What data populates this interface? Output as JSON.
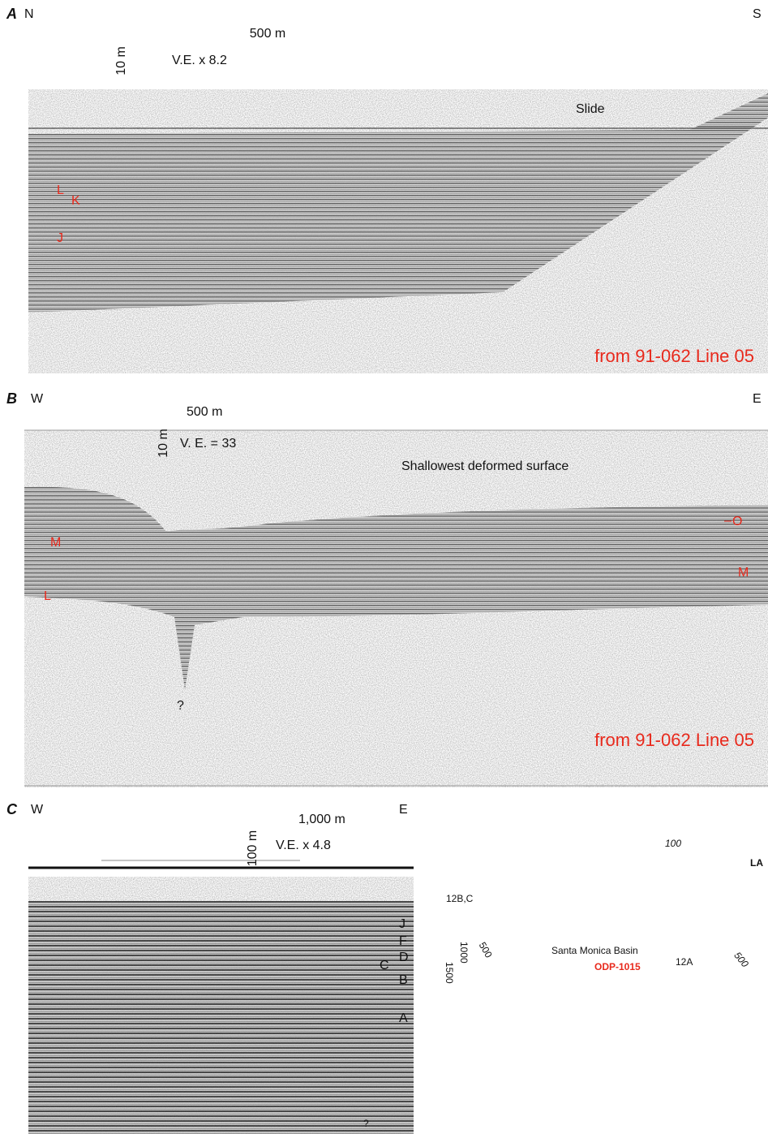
{
  "panels": [
    {
      "label": "A",
      "left": "N",
      "right": "S",
      "scale_horizontal": "500 m",
      "scale_vertical": "10 m",
      "vertical_exaggeration": "V.E. x 8.2",
      "annotation": "Slide",
      "horizons": [
        "L",
        "K",
        "J"
      ],
      "source": "from 91-062 Line 05"
    },
    {
      "label": "B",
      "left": "W",
      "right": "E",
      "scale_horizontal": "500 m",
      "scale_vertical": "10 m",
      "vertical_exaggeration": "V. E. = 33",
      "annotation": "Shallowest deformed surface",
      "horizons": [
        "M",
        "L",
        "O",
        "M"
      ],
      "question": "?",
      "source": "from 91-062 Line 05"
    },
    {
      "label": "C",
      "left": "W",
      "right": "E",
      "scale_horizontal": "1,000 m",
      "scale_vertical": "100 m",
      "vertical_exaggeration": "V.E. x 4.8",
      "horizons": [
        "J",
        "F",
        "D",
        "C",
        "B",
        "A"
      ],
      "question": "?"
    }
  ],
  "map": {
    "contours": [
      "100",
      "500",
      "1000",
      "1500",
      "500"
    ],
    "city": "LA",
    "sites": [
      "12B,C",
      "12A"
    ],
    "basin": "Santa Monica Basin",
    "drill_site": "ODP-1015"
  }
}
